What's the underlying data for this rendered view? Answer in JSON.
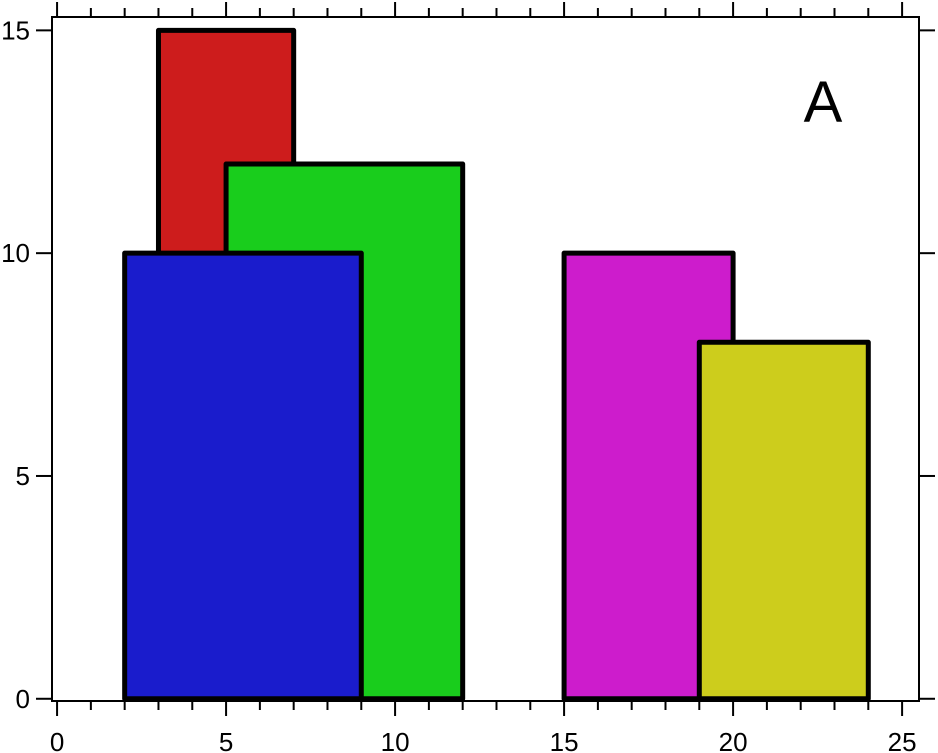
{
  "chart_data": {
    "type": "rectangles",
    "annotation": "A",
    "xlim": [
      -0.15,
      25.5
    ],
    "ylim": [
      -0.05,
      15.3
    ],
    "x_ticks": [
      0,
      5,
      10,
      15,
      20,
      25
    ],
    "x_minor_step": 1,
    "y_ticks": [
      0,
      5,
      10,
      15
    ],
    "grid": false,
    "rects": [
      {
        "x0": 3,
        "x1": 7,
        "y0": 0,
        "y1": 15,
        "color": "#cd1c1c"
      },
      {
        "x0": 5,
        "x1": 12,
        "y0": 0,
        "y1": 12,
        "color": "#19cd1c"
      },
      {
        "x0": 2,
        "x1": 9,
        "y0": 0,
        "y1": 10,
        "color": "#1a1ccc"
      },
      {
        "x0": 15,
        "x1": 20,
        "y0": 0,
        "y1": 10,
        "color": "#cd1ccc"
      },
      {
        "x0": 19,
        "x1": 24,
        "y0": 0,
        "y1": 8,
        "color": "#cdcd1c"
      }
    ]
  }
}
